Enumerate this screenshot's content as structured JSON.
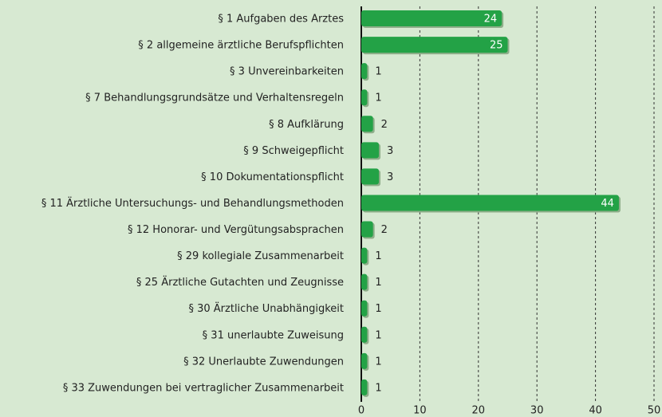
{
  "chart_data": {
    "type": "bar",
    "orientation": "horizontal",
    "categories": [
      "§ 1 Aufgaben des Arztes",
      "§ 2 allgemeine ärztliche Berufspflichten",
      "§ 3 Unvereinbarkeiten",
      "§ 7 Behandlungsgrundsätze und Verhaltensregeln",
      "§ 8 Aufklärung",
      "§ 9 Schweigepflicht",
      "§ 10 Dokumentationspflicht",
      "§ 11 Ärztliche Untersuchungs- und Behandlungsmethoden",
      "§ 12 Honorar- und Vergütungsabsprachen",
      "§ 29 kollegiale Zusammenarbeit",
      "§ 25 Ärztliche Gutachten und Zeugnisse",
      "§ 30 Ärztliche Unabhängigkeit",
      "§ 31 unerlaubte Zuweisung",
      "§ 32 Unerlaubte Zuwendungen",
      "§ 33 Zuwendungen bei vertraglicher Zusammenarbeit"
    ],
    "values": [
      24,
      25,
      1,
      1,
      2,
      3,
      3,
      44,
      2,
      1,
      1,
      1,
      1,
      1,
      1
    ],
    "color": "#23a246",
    "xlim": [
      0,
      50
    ],
    "xticks": [
      0,
      10,
      20,
      30,
      40,
      50
    ],
    "grid": true
  }
}
